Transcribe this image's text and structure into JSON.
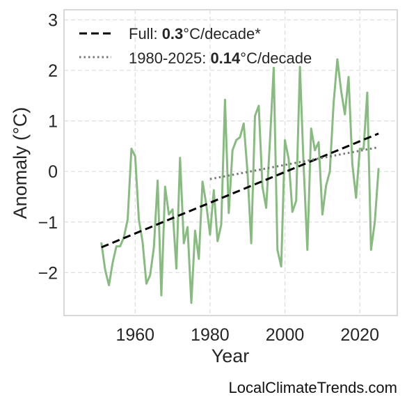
{
  "chart_data": {
    "type": "line",
    "xlabel": "Year",
    "ylabel": "Anomaly (°C)",
    "xlim": [
      1941,
      2030
    ],
    "ylim": [
      -2.85,
      3.2
    ],
    "xticks": [
      1960,
      1980,
      2000,
      2020
    ],
    "xtick_labels": [
      "1960",
      "1980",
      "2000",
      "2020"
    ],
    "yticks": [
      -2,
      -1,
      0,
      1,
      2,
      3
    ],
    "ytick_labels": [
      "−2",
      "−1",
      "0",
      "1",
      "2",
      "3"
    ],
    "grid": true,
    "legend_position": "top-left",
    "series": [
      {
        "color": "#88bb80",
        "x": [
          1951,
          1952,
          1953,
          1954,
          1955,
          1956,
          1957,
          1958,
          1959,
          1960,
          1961,
          1962,
          1963,
          1964,
          1965,
          1966,
          1967,
          1968,
          1969,
          1970,
          1971,
          1972,
          1973,
          1974,
          1975,
          1976,
          1977,
          1978,
          1979,
          1980,
          1981,
          1982,
          1983,
          1984,
          1985,
          1986,
          1987,
          1988,
          1989,
          1990,
          1991,
          1992,
          1993,
          1994,
          1995,
          1996,
          1997,
          1998,
          1999,
          2000,
          2001,
          2002,
          2003,
          2004,
          2005,
          2006,
          2007,
          2008,
          2009,
          2010,
          2011,
          2012,
          2013,
          2014,
          2015,
          2016,
          2017,
          2018,
          2019,
          2020,
          2021,
          2022,
          2023,
          2024,
          2025
        ],
        "y": [
          -1.42,
          -1.95,
          -2.25,
          -1.8,
          -1.48,
          -1.48,
          -1.3,
          -0.95,
          0.45,
          0.3,
          -0.95,
          -1.4,
          -2.22,
          -2.05,
          -1.5,
          -0.18,
          -2.45,
          -0.3,
          -0.85,
          -0.75,
          -1.92,
          0.27,
          -1.42,
          -1.1,
          -2.6,
          -1.17,
          -1.73,
          -0.2,
          -0.65,
          -1.25,
          -0.37,
          -1.38,
          -1.05,
          1.42,
          -0.82,
          0.42,
          0.62,
          0.68,
          0.95,
          0.0,
          -1.42,
          1.1,
          1.3,
          -0.3,
          -0.72,
          0.6,
          2.05,
          -1.55,
          -1.88,
          0.62,
          0.25,
          -0.8,
          -0.58,
          2.07,
          0.12,
          -1.55,
          0.85,
          0.42,
          0.58,
          -0.85,
          -0.28,
          0.0,
          1.35,
          2.22,
          1.6,
          1.13,
          1.87,
          0.15,
          -0.52,
          0.45,
          0.45,
          1.56,
          -1.55,
          -1.0,
          0.05
        ]
      }
    ],
    "trends": [
      {
        "label_prefix": "Full: ",
        "value_label": "0.3",
        "label_suffix": "°C/decade*",
        "style": "dashed",
        "color": "#000000",
        "x": [
          1951,
          2025
        ],
        "y": [
          -1.5,
          0.75
        ]
      },
      {
        "label_prefix": "1980-2025: ",
        "value_label": "0.14",
        "label_suffix": "°C/decade",
        "style": "dotted",
        "color": "#777777",
        "x": [
          1980,
          2025
        ],
        "y": [
          -0.15,
          0.48
        ]
      }
    ]
  },
  "credit": "LocalClimateTrends.com"
}
